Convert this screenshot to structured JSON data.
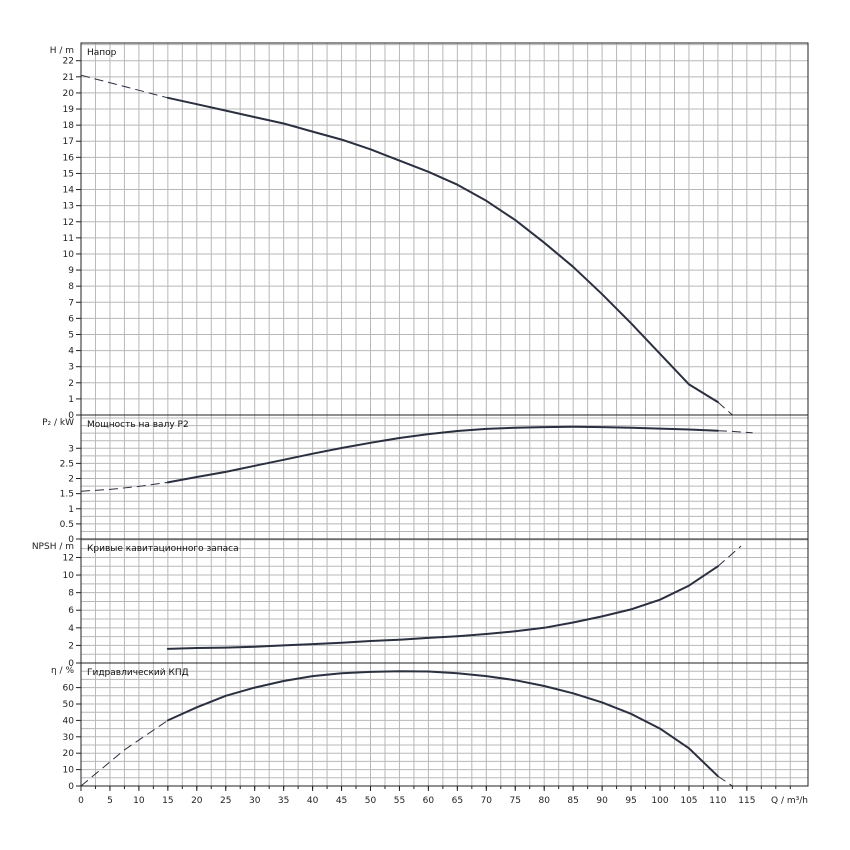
{
  "x_axis": {
    "label": "Q / m³/h",
    "min": 0,
    "max": 125,
    "grid_step": 2.5,
    "ticks": [
      0,
      5,
      10,
      15,
      20,
      25,
      30,
      35,
      40,
      45,
      50,
      55,
      60,
      65,
      70,
      75,
      80,
      85,
      90,
      95,
      100,
      105,
      110,
      115
    ]
  },
  "chart_data": [
    {
      "id": "head",
      "type": "line",
      "title": "Напор",
      "ylabel": "H / m",
      "ylim": [
        0,
        23.1
      ],
      "y_grid_step": 1,
      "y_ticks": [
        0,
        1,
        2,
        3,
        4,
        5,
        6,
        7,
        8,
        9,
        10,
        11,
        12,
        13,
        14,
        15,
        16,
        17,
        18,
        19,
        20,
        21,
        22
      ],
      "dashed_before": [
        [
          0,
          21.1
        ],
        [
          15,
          19.7
        ]
      ],
      "solid": [
        [
          15,
          19.7
        ],
        [
          20,
          19.3
        ],
        [
          25,
          18.9
        ],
        [
          30,
          18.5
        ],
        [
          35,
          18.1
        ],
        [
          40,
          17.6
        ],
        [
          45,
          17.1
        ],
        [
          50,
          16.5
        ],
        [
          55,
          15.8
        ],
        [
          60,
          15.1
        ],
        [
          65,
          14.3
        ],
        [
          70,
          13.3
        ],
        [
          75,
          12.1
        ],
        [
          80,
          10.7
        ],
        [
          85,
          9.2
        ],
        [
          90,
          7.5
        ],
        [
          95,
          5.7
        ],
        [
          100,
          3.8
        ],
        [
          105,
          1.9
        ],
        [
          110,
          0.8
        ]
      ],
      "dashed_after": [
        [
          110,
          0.8
        ],
        [
          112.5,
          0
        ]
      ]
    },
    {
      "id": "power",
      "type": "line",
      "title": "Мощность на валу P2",
      "ylabel": "P₂ / kW",
      "ylim": [
        0,
        4.1
      ],
      "y_grid_step": 0.25,
      "y_ticks": [
        0,
        0.5,
        1,
        1.5,
        2,
        2.5,
        3
      ],
      "y_tick_labels": [
        "0",
        "0.5",
        "1",
        "1.5",
        "2",
        "2.5",
        "3"
      ],
      "dashed_before": [
        [
          0,
          1.58
        ],
        [
          5,
          1.64
        ],
        [
          10,
          1.74
        ],
        [
          15,
          1.87
        ]
      ],
      "solid": [
        [
          15,
          1.87
        ],
        [
          20,
          2.05
        ],
        [
          25,
          2.22
        ],
        [
          30,
          2.42
        ],
        [
          35,
          2.62
        ],
        [
          40,
          2.82
        ],
        [
          45,
          3.01
        ],
        [
          50,
          3.18
        ],
        [
          55,
          3.34
        ],
        [
          60,
          3.47
        ],
        [
          65,
          3.57
        ],
        [
          70,
          3.64
        ],
        [
          75,
          3.68
        ],
        [
          80,
          3.7
        ],
        [
          85,
          3.71
        ],
        [
          90,
          3.7
        ],
        [
          95,
          3.68
        ],
        [
          100,
          3.65
        ],
        [
          105,
          3.62
        ],
        [
          110,
          3.58
        ]
      ],
      "dashed_after": [
        [
          110,
          3.58
        ],
        [
          113,
          3.55
        ],
        [
          116,
          3.51
        ]
      ]
    },
    {
      "id": "npsh",
      "type": "line",
      "title": "Кривые кавитационного запаса",
      "ylabel": "NPSH / m",
      "ylim": [
        0,
        14.1
      ],
      "y_grid_step": 1,
      "y_ticks": [
        0,
        2,
        4,
        6,
        8,
        10,
        12
      ],
      "solid": [
        [
          15,
          1.6
        ],
        [
          20,
          1.7
        ],
        [
          25,
          1.75
        ],
        [
          30,
          1.85
        ],
        [
          35,
          2.0
        ],
        [
          40,
          2.15
        ],
        [
          45,
          2.3
        ],
        [
          50,
          2.5
        ],
        [
          55,
          2.65
        ],
        [
          60,
          2.85
        ],
        [
          65,
          3.05
        ],
        [
          70,
          3.3
        ],
        [
          75,
          3.6
        ],
        [
          80,
          4.0
        ],
        [
          85,
          4.6
        ],
        [
          90,
          5.3
        ],
        [
          95,
          6.1
        ],
        [
          100,
          7.2
        ],
        [
          105,
          8.8
        ],
        [
          110,
          11.0
        ]
      ],
      "dashed_after": [
        [
          110,
          11.0
        ],
        [
          114,
          13.3
        ]
      ]
    },
    {
      "id": "efficiency",
      "type": "line",
      "title": "Гидравлический КПД",
      "ylabel": "η / %",
      "ylim": [
        0,
        75
      ],
      "y_grid_step": 5,
      "y_ticks": [
        0,
        10,
        20,
        30,
        40,
        50,
        60
      ],
      "dashed_before": [
        [
          0,
          0
        ],
        [
          7.5,
          22
        ],
        [
          15,
          40
        ]
      ],
      "solid": [
        [
          15,
          40
        ],
        [
          20,
          48
        ],
        [
          25,
          55
        ],
        [
          30,
          60
        ],
        [
          35,
          64
        ],
        [
          40,
          67
        ],
        [
          45,
          68.8
        ],
        [
          50,
          69.6
        ],
        [
          55,
          70
        ],
        [
          60,
          69.8
        ],
        [
          65,
          68.8
        ],
        [
          70,
          67
        ],
        [
          75,
          64.5
        ],
        [
          80,
          61
        ],
        [
          85,
          56.5
        ],
        [
          90,
          51
        ],
        [
          95,
          44
        ],
        [
          100,
          35
        ],
        [
          105,
          23
        ],
        [
          110,
          6
        ]
      ],
      "dashed_after": [
        [
          110,
          6
        ],
        [
          112.5,
          0
        ]
      ]
    }
  ]
}
